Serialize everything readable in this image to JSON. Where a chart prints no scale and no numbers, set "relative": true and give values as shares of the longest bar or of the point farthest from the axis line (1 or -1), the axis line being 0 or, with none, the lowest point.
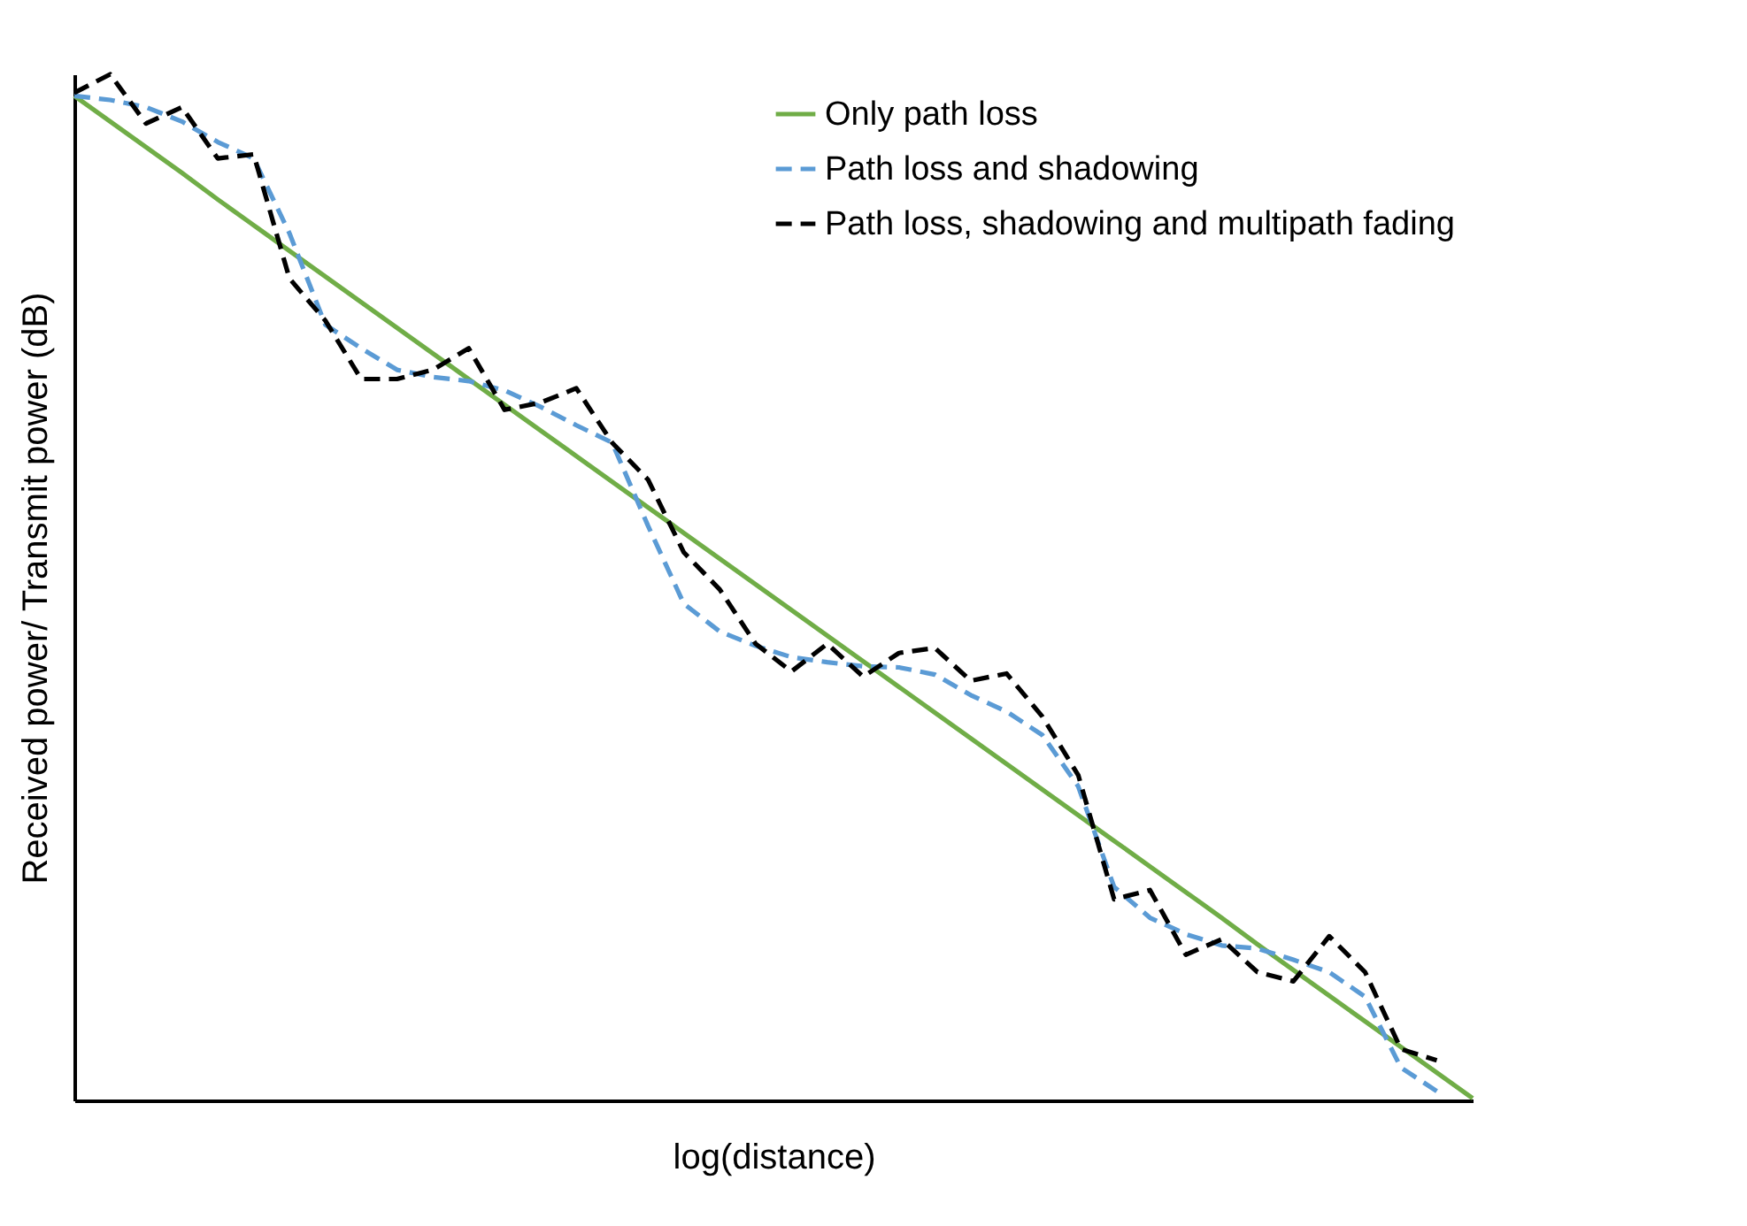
{
  "chart_data": {
    "type": "line",
    "relative": true,
    "xlabel": "log(distance)",
    "ylabel": "Received power/ Transmit power (dB)",
    "legend": "top right",
    "grid": false,
    "marker": "none",
    "categories": [
      null,
      null,
      null,
      null,
      null,
      null,
      null,
      null,
      null,
      null,
      null,
      null,
      null,
      null,
      null,
      null,
      null,
      null,
      null,
      null,
      null,
      null,
      null,
      null,
      null,
      null,
      null,
      null,
      null,
      null,
      null,
      null,
      null,
      null,
      null,
      null,
      null,
      null,
      null,
      null
    ],
    "series": [
      {
        "name": "Only path loss",
        "color": "#70ad47",
        "line_style": "solid",
        "values": [
          0.979,
          0.954,
          0.929,
          0.904,
          0.878,
          0.853,
          0.828,
          0.803,
          0.778,
          0.753,
          0.728,
          0.703,
          0.678,
          0.653,
          0.628,
          0.603,
          0.578,
          0.553,
          0.528,
          0.503,
          0.478,
          0.453,
          0.428,
          0.403,
          0.378,
          0.353,
          0.328,
          0.303,
          0.278,
          0.253,
          0.228,
          0.203,
          0.178,
          0.152,
          0.127,
          0.102,
          0.077,
          0.052,
          0.027,
          0.002
        ]
      },
      {
        "name": "Path loss and shadowing",
        "color": "#5b9bd5",
        "line_style": "dashed",
        "values": [
          0.979,
          0.975,
          0.968,
          0.954,
          0.934,
          0.918,
          0.845,
          0.756,
          0.733,
          0.712,
          0.705,
          0.701,
          0.692,
          0.676,
          0.658,
          0.641,
          0.56,
          0.484,
          0.457,
          0.443,
          0.432,
          0.427,
          0.423,
          0.422,
          0.415,
          0.395,
          0.379,
          0.356,
          0.306,
          0.208,
          0.178,
          0.162,
          0.151,
          0.148,
          0.137,
          0.125,
          0.101,
          0.032,
          0.009,
          null
        ]
      },
      {
        "name": "Path loss, shadowing and multipath fading",
        "color": "#000000",
        "line_style": "dashed",
        "values": [
          0.982,
          1.0,
          0.952,
          0.968,
          0.918,
          0.922,
          0.801,
          0.76,
          0.703,
          0.703,
          0.712,
          0.733,
          0.673,
          0.68,
          0.694,
          0.641,
          0.605,
          0.534,
          0.498,
          0.445,
          0.418,
          0.445,
          0.413,
          0.436,
          0.441,
          0.409,
          0.416,
          0.374,
          0.317,
          0.196,
          0.205,
          0.142,
          0.157,
          0.125,
          0.116,
          0.16,
          0.125,
          0.05,
          0.039,
          null
        ]
      }
    ]
  }
}
